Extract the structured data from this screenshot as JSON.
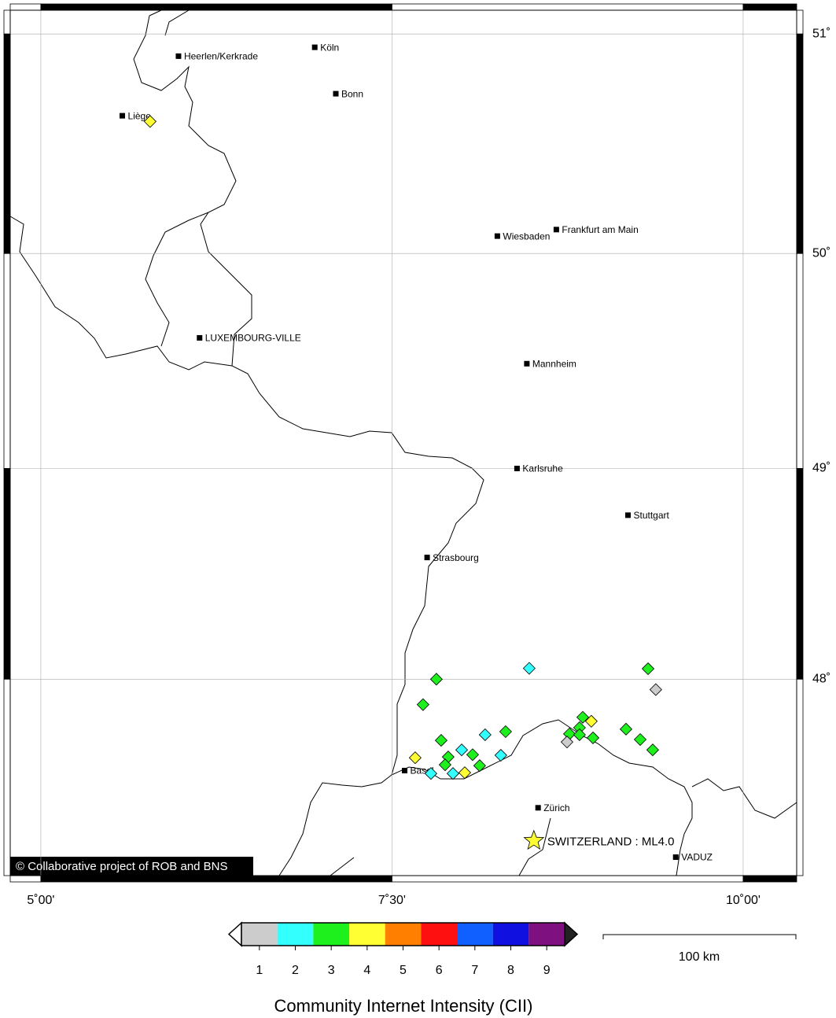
{
  "map": {
    "xlim": [
      4.782,
      10.381
    ],
    "ylim": [
      47.05,
      51.107
    ],
    "xticks": [
      {
        "value": 5,
        "label": "5˚00'"
      },
      {
        "value": 7.5,
        "label": "7˚30'"
      },
      {
        "value": 10,
        "label": "10˚00'"
      }
    ],
    "yticks": [
      {
        "value": 51,
        "label": "51˚"
      },
      {
        "value": 50,
        "label": "50˚"
      },
      {
        "value": 49,
        "label": "49˚"
      },
      {
        "value": 48,
        "label": "48˚"
      }
    ],
    "grid": true,
    "cities": [
      {
        "name": "Heerlen/Kerkrade",
        "lon": 5.98,
        "lat": 50.9
      },
      {
        "name": "Köln",
        "lon": 6.95,
        "lat": 50.94
      },
      {
        "name": "Bonn",
        "lon": 7.1,
        "lat": 50.73
      },
      {
        "name": "Liège",
        "lon": 5.58,
        "lat": 50.63
      },
      {
        "name": "Wiesbaden",
        "lon": 8.25,
        "lat": 50.08
      },
      {
        "name": "Frankfurt am Main",
        "lon": 8.67,
        "lat": 50.11
      },
      {
        "name": "LUXEMBOURG-VILLE",
        "lon": 6.13,
        "lat": 49.61
      },
      {
        "name": "Mannheim",
        "lon": 8.46,
        "lat": 49.49
      },
      {
        "name": "Karlsruhe",
        "lon": 8.39,
        "lat": 49.0
      },
      {
        "name": "Stuttgart",
        "lon": 9.18,
        "lat": 48.78
      },
      {
        "name": "Strasbourg",
        "lon": 7.75,
        "lat": 48.58
      },
      {
        "name": "Basel",
        "lon": 7.59,
        "lat": 47.56
      },
      {
        "name": "Zürich",
        "lon": 8.54,
        "lat": 47.38
      },
      {
        "name": "VADUZ",
        "lon": 9.52,
        "lat": 47.14
      }
    ],
    "epicenter": {
      "label": "SWITZERLAND : ML4.0",
      "lon": 8.51,
      "lat": 47.22
    },
    "reports": [
      {
        "lon": 5.778,
        "lat": 50.604,
        "cii": 4
      },
      {
        "lon": 7.816,
        "lat": 48.0,
        "cii": 3
      },
      {
        "lon": 7.721,
        "lat": 47.878,
        "cii": 3
      },
      {
        "lon": 8.477,
        "lat": 48.052,
        "cii": 2
      },
      {
        "lon": 9.323,
        "lat": 48.05,
        "cii": 3
      },
      {
        "lon": 9.378,
        "lat": 47.95,
        "cii": 1
      },
      {
        "lon": 8.858,
        "lat": 47.817,
        "cii": 3
      },
      {
        "lon": 8.919,
        "lat": 47.798,
        "cii": 4
      },
      {
        "lon": 8.835,
        "lat": 47.767,
        "cii": 3
      },
      {
        "lon": 9.166,
        "lat": 47.76,
        "cii": 3
      },
      {
        "lon": 8.763,
        "lat": 47.737,
        "cii": 3
      },
      {
        "lon": 8.835,
        "lat": 47.733,
        "cii": 3
      },
      {
        "lon": 8.746,
        "lat": 47.698,
        "cii": 1
      },
      {
        "lon": 8.931,
        "lat": 47.718,
        "cii": 3
      },
      {
        "lon": 9.267,
        "lat": 47.71,
        "cii": 3
      },
      {
        "lon": 9.356,
        "lat": 47.66,
        "cii": 3
      },
      {
        "lon": 8.309,
        "lat": 47.748,
        "cii": 3
      },
      {
        "lon": 8.163,
        "lat": 47.733,
        "cii": 2
      },
      {
        "lon": 7.85,
        "lat": 47.706,
        "cii": 3
      },
      {
        "lon": 7.996,
        "lat": 47.66,
        "cii": 2
      },
      {
        "lon": 7.9,
        "lat": 47.626,
        "cii": 3
      },
      {
        "lon": 8.074,
        "lat": 47.637,
        "cii": 3
      },
      {
        "lon": 8.275,
        "lat": 47.634,
        "cii": 2
      },
      {
        "lon": 7.665,
        "lat": 47.622,
        "cii": 4
      },
      {
        "lon": 7.878,
        "lat": 47.588,
        "cii": 3
      },
      {
        "lon": 8.124,
        "lat": 47.584,
        "cii": 3
      },
      {
        "lon": 7.777,
        "lat": 47.546,
        "cii": 2
      },
      {
        "lon": 7.934,
        "lat": 47.546,
        "cii": 2
      },
      {
        "lon": 8.018,
        "lat": 47.55,
        "cii": 4
      }
    ],
    "credit": "© Collaborative project of ROB and BNS"
  },
  "colorbar": {
    "title": "Community Internet Intensity (CII)",
    "ticks": [
      1,
      2,
      3,
      4,
      5,
      6,
      7,
      8,
      9
    ],
    "colors": [
      "#cccccc",
      "#33ffff",
      "#1ef01e",
      "#ffff33",
      "#ff7f00",
      "#ff1010",
      "#1060ff",
      "#1010e0",
      "#7f107f"
    ]
  },
  "scale_bar": {
    "label": "100 km"
  }
}
